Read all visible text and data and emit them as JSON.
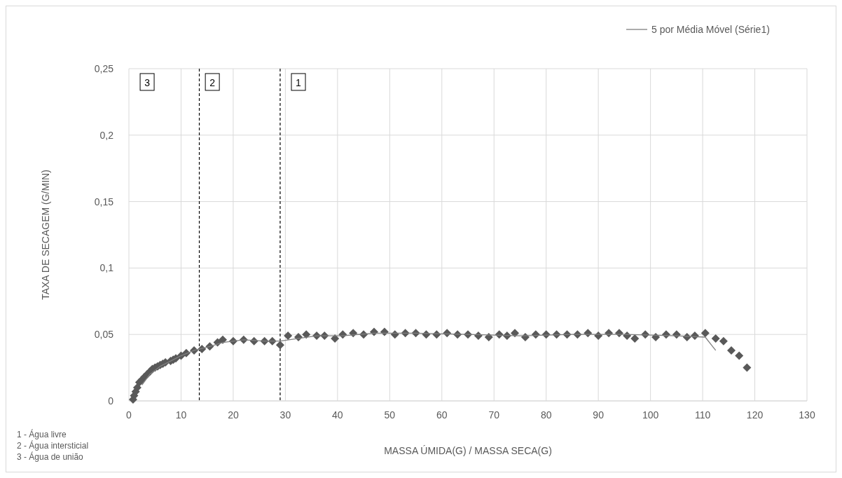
{
  "chart_data": {
    "type": "scatter",
    "xlabel": "MASSA ÚMIDA(G) / MASSA SECA(G)",
    "ylabel": "TAXA DE SECAGEM (G/MIN)",
    "xlim": [
      0,
      130
    ],
    "xticks": [
      0,
      10,
      20,
      30,
      40,
      50,
      60,
      70,
      80,
      90,
      100,
      110,
      120,
      130
    ],
    "ylim": [
      0,
      0.25
    ],
    "yticks": [
      0,
      {
        "value": 0.05,
        "label": "0,05"
      },
      {
        "value": 0.1,
        "label": "0,1"
      },
      {
        "value": 0.15,
        "label": "0,15"
      },
      {
        "value": 0.2,
        "label": "0,2"
      },
      {
        "value": 0.25,
        "label": "0,25"
      }
    ],
    "grid": true,
    "legend": "top right",
    "marker": "diamond",
    "series": [
      {
        "color": "#595959",
        "x": [
          0.8,
          1.0,
          1.3,
          1.6,
          2,
          2.5,
          3,
          3.5,
          4,
          4.5,
          5,
          5.5,
          6,
          6.5,
          7,
          8,
          8.5,
          9,
          10,
          11,
          12.5,
          14,
          15.5,
          17,
          18,
          20,
          22,
          24,
          26,
          27.5,
          29,
          30.5,
          32.5,
          34,
          36,
          37.5,
          39.5,
          41,
          43,
          45,
          47,
          49,
          51,
          53,
          55,
          57,
          59,
          61,
          63,
          65,
          67,
          69,
          71,
          72.5,
          74,
          76,
          78,
          80,
          82,
          84,
          86,
          88,
          90,
          92,
          94,
          95.5,
          97,
          99,
          101,
          103,
          105,
          107,
          108.5,
          110.5,
          112.5,
          114,
          115.5,
          117,
          118.5
        ],
        "values": [
          0.001,
          0.004,
          0.007,
          0.01,
          0.014,
          0.016,
          0.018,
          0.02,
          0.022,
          0.024,
          0.025,
          0.026,
          0.027,
          0.028,
          0.029,
          0.03,
          0.031,
          0.032,
          0.034,
          0.036,
          0.038,
          0.039,
          0.041,
          0.044,
          0.046,
          0.045,
          0.046,
          0.045,
          0.045,
          0.045,
          0.042,
          0.049,
          0.048,
          0.05,
          0.049,
          0.049,
          0.047,
          0.05,
          0.051,
          0.05,
          0.052,
          0.052,
          0.05,
          0.051,
          0.051,
          0.05,
          0.05,
          0.051,
          0.05,
          0.05,
          0.049,
          0.048,
          0.05,
          0.049,
          0.051,
          0.048,
          0.05,
          0.05,
          0.05,
          0.05,
          0.05,
          0.051,
          0.049,
          0.051,
          0.051,
          0.049,
          0.047,
          0.05,
          0.048,
          0.05,
          0.05,
          0.048,
          0.049,
          0.051,
          0.047,
          0.045,
          0.038,
          0.034,
          0.025
        ]
      },
      {
        "type": "line",
        "name": "5 por Média Móvel (Série1)",
        "color": "#7f7f7f",
        "marker": "none",
        "x": [
          2.5,
          4,
          6,
          8,
          10,
          12.5,
          15.5,
          18,
          22,
          26,
          29,
          32.5,
          36,
          41,
          47,
          55,
          65,
          75,
          85,
          95,
          105,
          110.5,
          112.5
        ],
        "values": [
          0.012,
          0.02,
          0.026,
          0.03,
          0.034,
          0.038,
          0.041,
          0.044,
          0.046,
          0.045,
          0.045,
          0.047,
          0.049,
          0.049,
          0.051,
          0.051,
          0.05,
          0.049,
          0.05,
          0.05,
          0.049,
          0.048,
          0.038
        ]
      }
    ],
    "ref_lines": [
      {
        "axis": "x",
        "value": 13.5,
        "color": "#000000",
        "line_style": "dashed"
      },
      {
        "axis": "x",
        "value": 29,
        "color": "#000000",
        "line_style": "dashed"
      }
    ],
    "annotations": [
      {
        "text": "3",
        "x": 3.5,
        "y": 0.24
      },
      {
        "text": "2",
        "x": 16,
        "y": 0.24
      },
      {
        "text": "1",
        "x": 32.5,
        "y": 0.24
      },
      "1 - Água livre",
      "2 - Água intersticial",
      "3 - Água de união"
    ]
  }
}
